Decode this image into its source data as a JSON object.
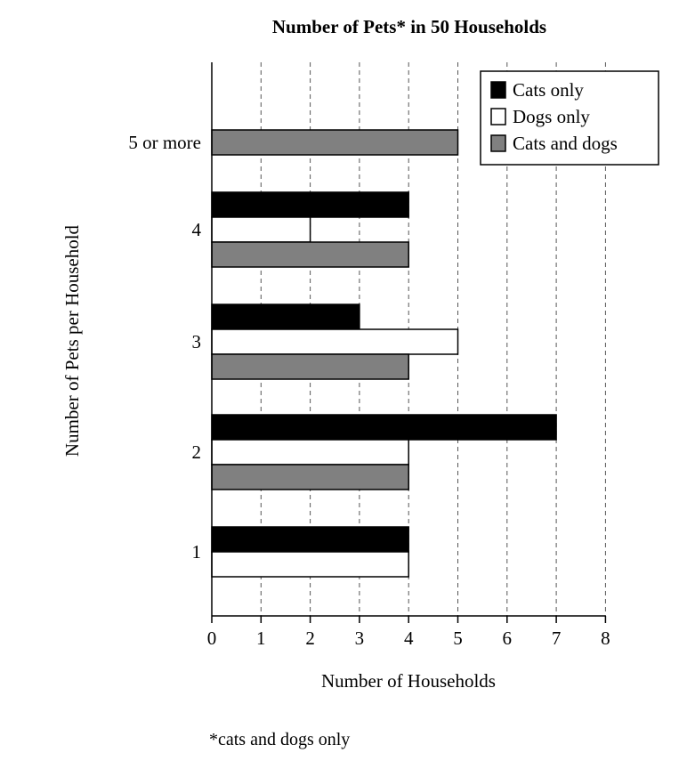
{
  "chart_data": {
    "type": "bar",
    "orientation": "horizontal",
    "title": "Number of Pets* in 50 Households",
    "xlabel": "Number of Households",
    "ylabel": "Number of Pets per Household",
    "footnote": "*cats and dogs only",
    "categories": [
      "1",
      "2",
      "3",
      "4",
      "5 or more"
    ],
    "xlim": [
      0,
      8
    ],
    "xticks": [
      0,
      1,
      2,
      3,
      4,
      5,
      6,
      7,
      8
    ],
    "grid": "vertical dashed",
    "legend_position": "top-right",
    "series": [
      {
        "name": "Cats only",
        "color": "#000000",
        "values": [
          4,
          7,
          3,
          4,
          0
        ]
      },
      {
        "name": "Dogs only",
        "color": "#ffffff",
        "values": [
          4,
          4,
          5,
          2,
          0
        ]
      },
      {
        "name": "Cats and dogs",
        "color": "#808080",
        "values": [
          0,
          4,
          4,
          4,
          5
        ]
      }
    ]
  }
}
